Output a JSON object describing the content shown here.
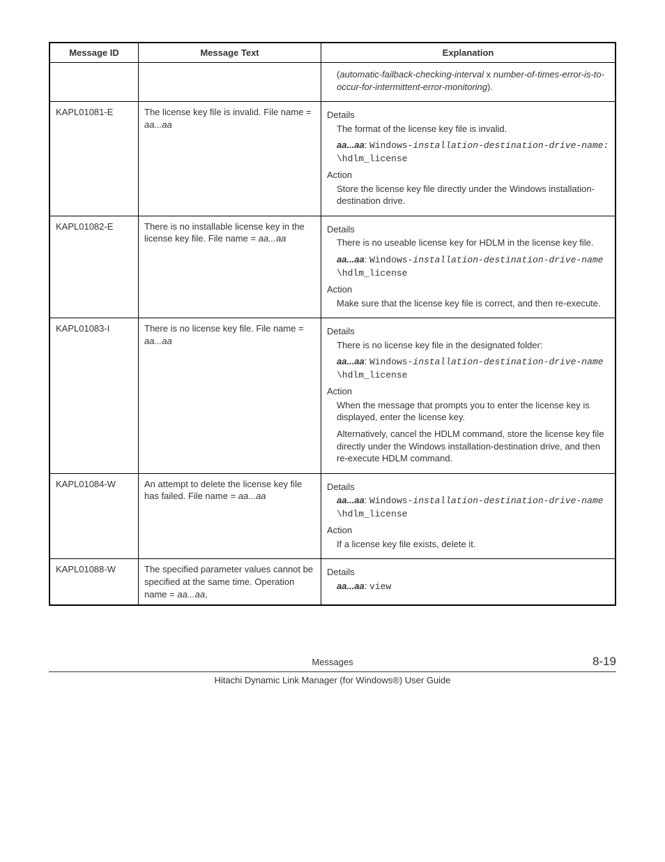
{
  "headers": {
    "id": "Message ID",
    "text": "Message Text",
    "explanation": "Explanation"
  },
  "rows": {
    "r0": {
      "exp_indent1_pre": "(",
      "exp_indent1_it1": "automatic-failback-checking-interval",
      "exp_indent1_mid": " x ",
      "exp_indent1_it2": "number-of-times-error-is-to-occur-for-intermittent-error-monitoring",
      "exp_indent1_post": ")."
    },
    "r1": {
      "id": "KAPL01081-E",
      "text_pre": "The license key file is invalid. File name = ",
      "text_it": "aa...aa",
      "details_label": "Details",
      "details_p1": "The format of the license key file is invalid.",
      "aa_b": "aa...aa",
      "aa_colon": ": ",
      "aa_m1": "Windows-",
      "aa_it": "installation-destination-drive-name:",
      "aa_m2": "\\hdlm_license",
      "action_label": "Action",
      "action_p": "Store the license key file directly under the Windows installation-destination drive."
    },
    "r2": {
      "id": "KAPL01082-E",
      "text_pre": "There is no installable license key in the license key file. File name = ",
      "text_it": "aa...aa",
      "details_label": "Details",
      "details_p1": "There is no useable license key for HDLM in the license key file.",
      "aa_b": "aa...aa",
      "aa_colon": ": ",
      "aa_m1": "Windows-",
      "aa_it": "installation-destination-drive-name",
      "aa_m2": "\\hdlm_license",
      "action_label": "Action",
      "action_p": "Make sure that the license key file is correct, and then re-execute."
    },
    "r3": {
      "id": "KAPL01083-I",
      "text_pre": "There is no license key file. File name = ",
      "text_it": "aa...aa",
      "details_label": "Details",
      "details_p1": "There is no license key file in the designated folder:",
      "aa_b": "aa...aa",
      "aa_colon": ": ",
      "aa_m1": "Windows-",
      "aa_it": "installation-destination-drive-name",
      "aa_m2": "\\hdlm_license",
      "action_label": "Action",
      "action_p1": "When the message that prompts you to enter the license key is displayed, enter the license key.",
      "action_p2": "Alternatively, cancel the HDLM command, store the license key file directly under the Windows installation-destination drive, and then re-execute HDLM command."
    },
    "r4": {
      "id": "KAPL01084-W",
      "text_pre": "An attempt to delete the license key file has failed. File name = ",
      "text_it": "aa...aa",
      "details_label": "Details",
      "aa_b": "aa...aa",
      "aa_colon": ": ",
      "aa_m1": "Windows-",
      "aa_it": "installation-destination-drive-name",
      "aa_m2": "\\hdlm_license",
      "action_label": "Action",
      "action_p": "If a license key file exists, delete it."
    },
    "r5": {
      "id": "KAPL01088-W",
      "text_pre": "The specified parameter values cannot be specified at the same time. Operation name = ",
      "text_it": "aa...aa",
      "text_post": ",",
      "details_label": "Details",
      "aa_b": "aa...aa",
      "aa_colon": ": ",
      "aa_m": "view"
    }
  },
  "footer": {
    "center_top": "Messages",
    "page_number": "8-19",
    "bottom": "Hitachi Dynamic Link Manager (for Windows®) User Guide"
  }
}
